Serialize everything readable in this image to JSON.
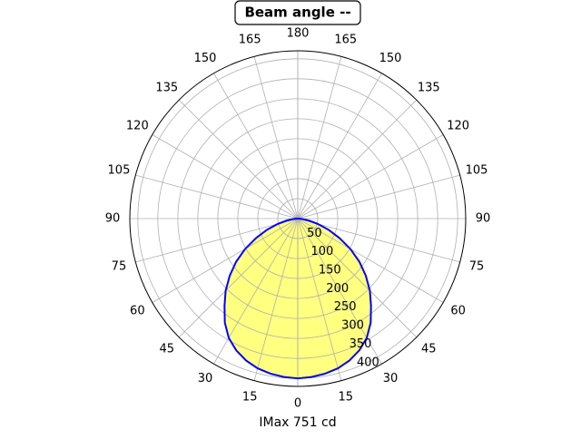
{
  "chart_data": {
    "type": "polar",
    "title": "Beam angle --",
    "xlabel": "IMax 751 cd",
    "theta": [
      0,
      5,
      10,
      15,
      20,
      25,
      30,
      35,
      40,
      45,
      50,
      55,
      60,
      65,
      70,
      75,
      80,
      85,
      90
    ],
    "series": [
      {
        "color": "#0000ff",
        "fill": "#ffff80",
        "values": [
          400,
          398,
          394,
          388,
          378,
          364,
          345,
          318,
          285,
          255,
          222,
          188,
          152,
          115,
          82,
          52,
          28,
          10,
          0
        ]
      }
    ],
    "xticks": [
      0,
      15,
      30,
      45,
      60,
      75,
      90,
      105,
      120,
      135,
      150,
      165,
      180
    ],
    "ylim": [
      0,
      420
    ],
    "yticks": [
      50,
      100,
      150,
      200,
      250,
      300,
      350,
      400
    ],
    "grid": true
  }
}
